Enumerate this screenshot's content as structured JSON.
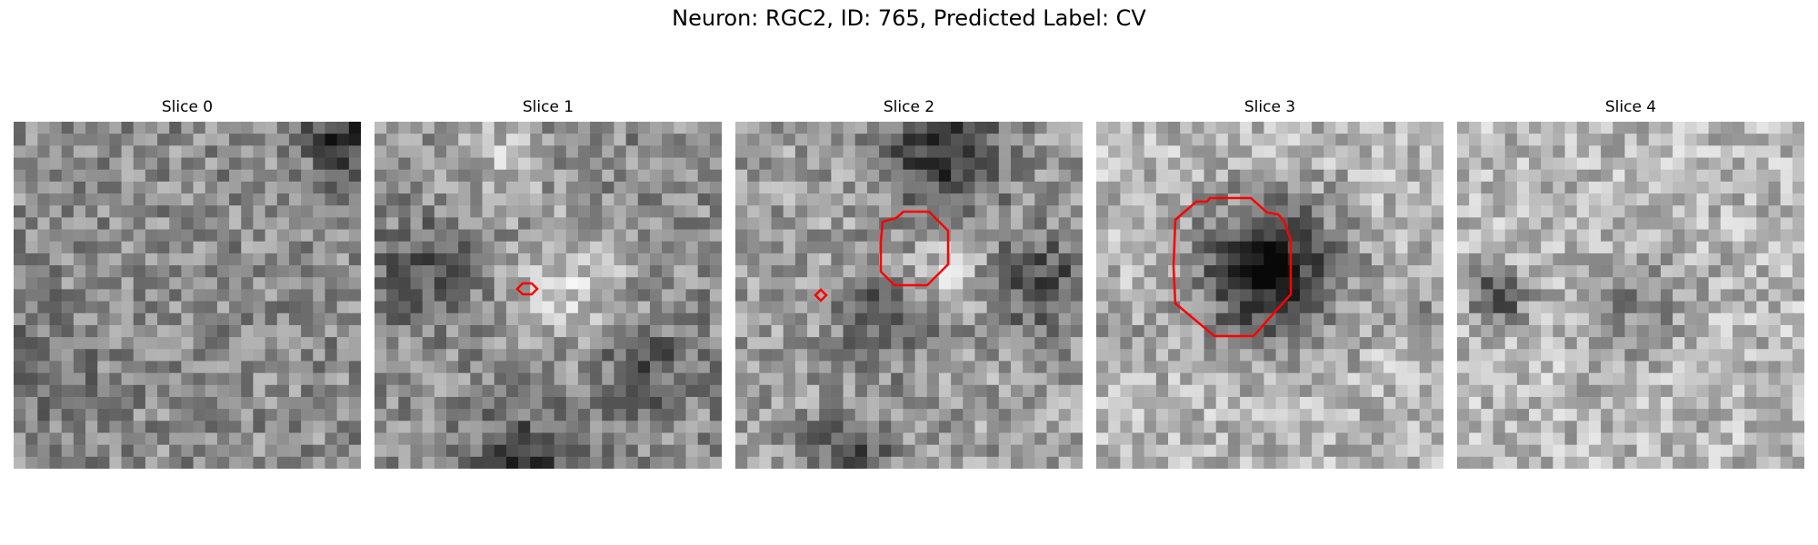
{
  "figure": {
    "title": "Neuron: RGC2, ID: 765, Predicted Label: CV"
  },
  "contour_color": "#ff0000",
  "panels": [
    {
      "title": "Slice 0",
      "contours": 0
    },
    {
      "title": "Slice 1",
      "contours": 1
    },
    {
      "title": "Slice 2",
      "contours": 2
    },
    {
      "title": "Slice 3",
      "contours": 1
    },
    {
      "title": "Slice 4",
      "contours": 0
    }
  ]
}
